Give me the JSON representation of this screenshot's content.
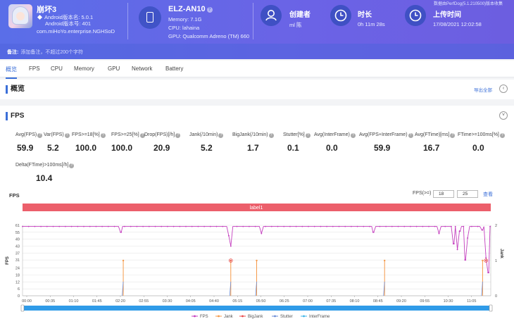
{
  "tool_info": "数据由PerfDog(5.1.210500)版本收集",
  "app": {
    "name": "崩坏3",
    "android_name": "Android版本名: 5.0.1",
    "android_code": "Android版本号: 401",
    "package": "com.miHoYo.enterprise.NGHSoD"
  },
  "device": {
    "name": "ELZ-AN10",
    "memory": "Memory: 7.1G",
    "cpu": "CPU: lahaina",
    "gpu": "GPU: Qualcomm Adreno (TM) 660"
  },
  "creator": {
    "label": "创建者",
    "value": "ml 陈"
  },
  "duration": {
    "label": "时长",
    "value": "0h 11m 28s"
  },
  "upload": {
    "label": "上传时间",
    "value": "17/08/2021 12:02:58"
  },
  "remark": {
    "label": "备注:",
    "hint": "添加备注，不超过200个字符"
  },
  "tabs": [
    "概览",
    "FPS",
    "CPU",
    "Memory",
    "GPU",
    "Network",
    "Battery"
  ],
  "overview": {
    "title": "概览",
    "export": "导出全部"
  },
  "fps_section": {
    "title": "FPS",
    "metrics": [
      {
        "label": "Avg(FPS)",
        "value": "59.9"
      },
      {
        "label": "Var(FPS)",
        "value": "5.2"
      },
      {
        "label": "FPS>=18[%]",
        "value": "100.0"
      },
      {
        "label": "FPS>=25[%]",
        "value": "100.0"
      },
      {
        "label": "Drop(FPS)[/h]",
        "value": "20.9"
      },
      {
        "label": "Jank(/10min)",
        "value": "5.2"
      },
      {
        "label": "BigJank(/10min)",
        "value": "1.7"
      },
      {
        "label": "Stutter[%]",
        "value": "0.1"
      },
      {
        "label": "Avg(InterFrame)",
        "value": "0.0"
      },
      {
        "label": "Avg(FPS+InterFrame)",
        "value": "59.9"
      },
      {
        "label": "Avg(FTime)[ms]",
        "value": "16.7"
      },
      {
        "label": "FTime>=100ms[%]",
        "value": "0.0"
      }
    ],
    "delta": {
      "label": "Delta(FTime)>100ms[/h]",
      "value": "10.4"
    },
    "chart_label": "FPS",
    "fps_threshold_label": "FPS(>=)",
    "fps_threshold_1": "18",
    "fps_threshold_2": "25",
    "query": "查看"
  },
  "chart_data": {
    "type": "line",
    "title": "FPS",
    "band_label": "label1",
    "ylabel": "FPS",
    "ylabel_right": "Jank",
    "ylim": [
      0,
      61
    ],
    "yticks": [
      0,
      6,
      12,
      18,
      24,
      31,
      37,
      43,
      49,
      55,
      61
    ],
    "ylim_right": [
      0,
      2
    ],
    "yticks_right": [
      0,
      1,
      2
    ],
    "x_ticks": [
      "00:00",
      "00:35",
      "01:10",
      "01:45",
      "02:20",
      "02:55",
      "03:30",
      "04:05",
      "04:40",
      "05:15",
      "05:50",
      "06:25",
      "07:00",
      "07:35",
      "08:10",
      "08:45",
      "09:20",
      "09:55",
      "10:30",
      "11:05"
    ],
    "x_range_seconds": [
      0,
      688
    ],
    "fps_baseline": 60,
    "fps_dips": [
      [
        145,
        55
      ],
      [
        303,
        52
      ],
      [
        306,
        43
      ],
      [
        351,
        54
      ],
      [
        515,
        55
      ],
      [
        612,
        54
      ],
      [
        634,
        45
      ],
      [
        639,
        40
      ],
      [
        643,
        56
      ],
      [
        650,
        31
      ],
      [
        654,
        50
      ],
      [
        676,
        57
      ],
      [
        681,
        33
      ],
      [
        685,
        20
      ],
      [
        688,
        60
      ]
    ],
    "jank_points": [
      [
        148,
        1
      ],
      [
        306,
        1
      ],
      [
        344,
        1
      ],
      [
        532,
        1
      ],
      [
        676,
        1
      ]
    ],
    "bigjank_points": [
      [
        306,
        1
      ],
      [
        681,
        1
      ]
    ],
    "legend": [
      "FPS",
      "Jank",
      "BigJank",
      "Stutter",
      "InterFrame"
    ],
    "colors": {
      "FPS": "#c43fbf",
      "Jank": "#f59a4a",
      "BigJank": "#e84a4a",
      "Stutter": "#6b8cd6",
      "InterFrame": "#3fb6e8",
      "band": "#ec5f6b",
      "slider": "#2f9be8"
    }
  }
}
